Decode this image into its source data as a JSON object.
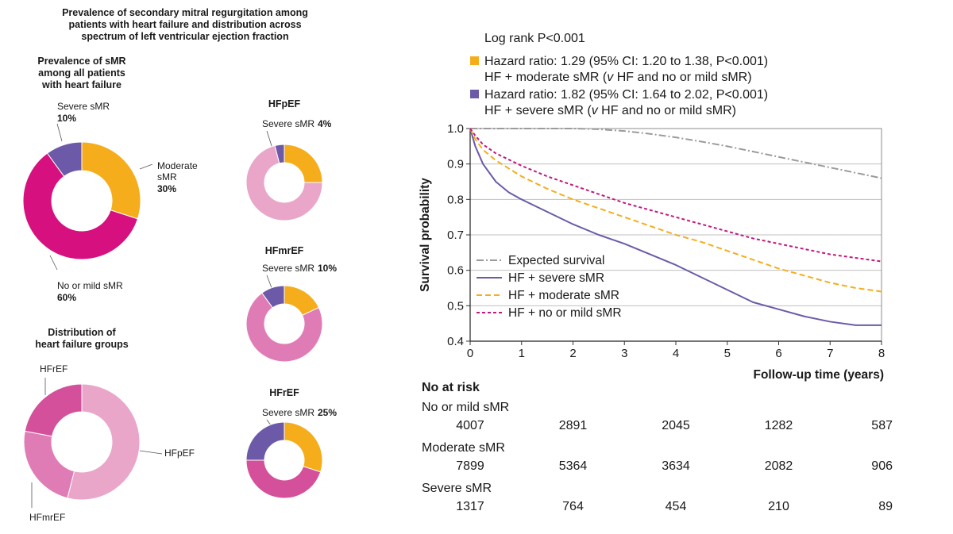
{
  "colors": {
    "severe": "#6c5aa8",
    "moderate": "#f5ad1b",
    "mild": "#d6117f",
    "expected": "#9b9b9b",
    "hfpef": "#e9a6c9",
    "hfmref": "#e07cb5",
    "hfref": "#d4509a",
    "grid": "#bfbfbf",
    "text": "#1a1a1a"
  },
  "left": {
    "title_lines": [
      "Prevalence of secondary mitral regurgitation among",
      "patients with heart failure and distribution across",
      "spectrum of left ventricular ejection fraction"
    ],
    "prevalence_title_lines": [
      "Prevalence of sMR",
      "among all patients",
      "with heart failure"
    ],
    "distribution_title_lines": [
      "Distribution of",
      "heart failure groups"
    ]
  },
  "chart_data": [
    {
      "type": "pie",
      "id": "prevalence-all",
      "title": "Prevalence of sMR among all patients with heart failure",
      "slices": [
        {
          "name": "Moderate sMR",
          "value": 30,
          "label_lines": [
            "Moderate",
            "sMR"
          ],
          "pct_label": "30%",
          "color": "#f5ad1b"
        },
        {
          "name": "No or mild sMR",
          "value": 60,
          "label_lines": [
            "No or mild sMR"
          ],
          "pct_label": "60%",
          "color": "#d6117f"
        },
        {
          "name": "Severe sMR",
          "value": 10,
          "label_lines": [
            "Severe sMR"
          ],
          "pct_label": "10%",
          "color": "#6c5aa8"
        }
      ]
    },
    {
      "type": "pie",
      "id": "distribution",
      "title": "Distribution of heart failure groups",
      "slices": [
        {
          "name": "HFpEF",
          "value": 54,
          "label": "HFpEF",
          "color": "#e9a6c9"
        },
        {
          "name": "HFmrEF",
          "value": 24,
          "label": "HFmrEF",
          "color": "#e07cb5"
        },
        {
          "name": "HFrEF",
          "value": 22,
          "label": "HFrEF",
          "color": "#d4509a"
        }
      ]
    },
    {
      "type": "pie",
      "id": "hfpef",
      "title": "HFpEF",
      "severe_label": "Severe sMR",
      "severe_pct": "4%",
      "slices": [
        {
          "name": "Moderate sMR",
          "value": 25,
          "color": "#f5ad1b"
        },
        {
          "name": "No or mild sMR",
          "value": 71,
          "color": "#e9a6c9"
        },
        {
          "name": "Severe sMR",
          "value": 4,
          "color": "#6c5aa8"
        }
      ]
    },
    {
      "type": "pie",
      "id": "hfmref",
      "title": "HFmrEF",
      "severe_label": "Severe sMR",
      "severe_pct": "10%",
      "slices": [
        {
          "name": "Moderate sMR",
          "value": 18,
          "color": "#f5ad1b"
        },
        {
          "name": "No or mild sMR",
          "value": 72,
          "color": "#e07cb5"
        },
        {
          "name": "Severe sMR",
          "value": 10,
          "color": "#6c5aa8"
        }
      ]
    },
    {
      "type": "pie",
      "id": "hfref",
      "title": "HFrEF",
      "severe_label": "Severe sMR",
      "severe_pct": "25%",
      "slices": [
        {
          "name": "Moderate sMR",
          "value": 30,
          "color": "#f5ad1b"
        },
        {
          "name": "No or mild sMR",
          "value": 45,
          "color": "#d4509a"
        },
        {
          "name": "Severe sMR",
          "value": 25,
          "color": "#6c5aa8"
        }
      ]
    },
    {
      "type": "line",
      "id": "survival",
      "annotation_title": "Log rank P<0.001",
      "hazard_ratios": [
        {
          "line1": "Hazard ratio: 1.29 (95% CI: 1.20 to 1.38, P<0.001)",
          "line2_pre": "HF + moderate sMR (",
          "line2_it": "v",
          "line2_post": " HF and no or mild sMR)",
          "color": "#f5ad1b"
        },
        {
          "line1": "Hazard ratio: 1.82 (95% CI: 1.64 to 2.02, P<0.001)",
          "line2_pre": "HF + severe sMR (",
          "line2_it": "v",
          "line2_post": " HF and no or mild sMR)",
          "color": "#6c5aa8"
        }
      ],
      "xlabel": "Follow-up time (years)",
      "ylabel": "Survival probability",
      "xlim": [
        0,
        8
      ],
      "ylim": [
        0.4,
        1.0
      ],
      "xticks": [
        0,
        1,
        2,
        3,
        4,
        5,
        6,
        7,
        8
      ],
      "yticks": [
        0.4,
        0.5,
        0.6,
        0.7,
        0.8,
        0.9,
        1.0
      ],
      "ytick_labels": [
        "0.4",
        "0.5",
        "0.6",
        "0.7",
        "0.8",
        "0.9",
        "1.0"
      ],
      "series": [
        {
          "name": "Expected survival",
          "style": "dashdot",
          "color": "#9b9b9b",
          "x": [
            0,
            1,
            2,
            2.5,
            3,
            3.5,
            4,
            4.5,
            5,
            5.5,
            6,
            6.5,
            7,
            7.5,
            8
          ],
          "y": [
            1.0,
            1.0,
            1.0,
            0.998,
            0.993,
            0.985,
            0.975,
            0.963,
            0.95,
            0.935,
            0.92,
            0.905,
            0.89,
            0.875,
            0.86
          ]
        },
        {
          "name": "HF + severe sMR",
          "style": "solid",
          "color": "#6c5aa8",
          "x": [
            0,
            0.1,
            0.25,
            0.5,
            0.75,
            1,
            1.5,
            2,
            2.5,
            3,
            3.5,
            4,
            4.5,
            5,
            5.5,
            6,
            6.5,
            7,
            7.5,
            8
          ],
          "y": [
            1.0,
            0.95,
            0.9,
            0.85,
            0.82,
            0.8,
            0.765,
            0.73,
            0.7,
            0.675,
            0.645,
            0.615,
            0.58,
            0.545,
            0.51,
            0.49,
            0.47,
            0.455,
            0.445,
            0.445
          ]
        },
        {
          "name": "HF + moderate sMR",
          "style": "dashed",
          "color": "#f5ad1b",
          "x": [
            0,
            0.1,
            0.25,
            0.5,
            1,
            1.5,
            2,
            2.5,
            3,
            3.5,
            4,
            4.5,
            5,
            5.5,
            6,
            6.5,
            7,
            7.5,
            8
          ],
          "y": [
            1.0,
            0.97,
            0.94,
            0.91,
            0.865,
            0.83,
            0.8,
            0.775,
            0.75,
            0.725,
            0.7,
            0.68,
            0.655,
            0.63,
            0.605,
            0.585,
            0.565,
            0.55,
            0.54
          ]
        },
        {
          "name": "HF + no or mild sMR",
          "style": "dotted",
          "color": "#c2187e",
          "x": [
            0,
            0.1,
            0.25,
            0.5,
            1,
            1.5,
            2,
            2.5,
            3,
            3.5,
            4,
            4.5,
            5,
            5.5,
            6,
            6.5,
            7,
            7.5,
            8
          ],
          "y": [
            1.0,
            0.98,
            0.955,
            0.93,
            0.895,
            0.865,
            0.84,
            0.815,
            0.79,
            0.77,
            0.75,
            0.73,
            0.71,
            0.69,
            0.675,
            0.66,
            0.645,
            0.635,
            0.625
          ]
        }
      ],
      "risk_table": {
        "title": "No at risk",
        "rows": [
          {
            "label": "No or mild sMR",
            "values": [
              "4007",
              "2891",
              "2045",
              "1282",
              "587"
            ]
          },
          {
            "label": "Moderate sMR",
            "values": [
              "7899",
              "5364",
              "3634",
              "2082",
              "906"
            ]
          },
          {
            "label": "Severe sMR",
            "values": [
              "1317",
              "764",
              "454",
              "210",
              "89"
            ]
          }
        ]
      }
    }
  ]
}
